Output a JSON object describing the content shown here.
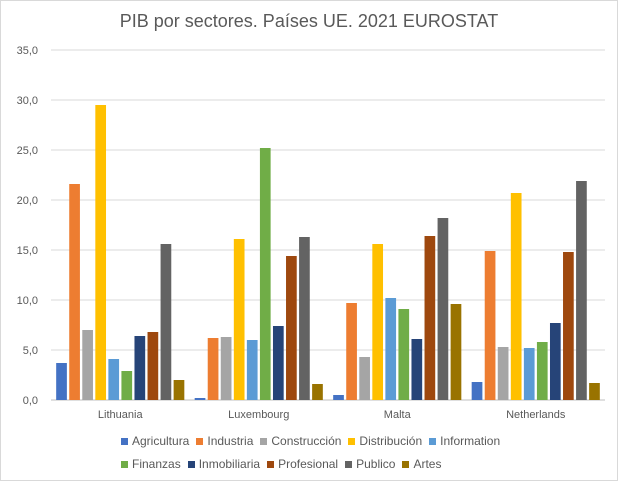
{
  "chart_data": {
    "type": "bar",
    "title": "PIB por sectores. Países UE. 2021 EUROSTAT",
    "xlabel": "",
    "ylabel": "",
    "ylim": [
      0,
      35
    ],
    "yticks": [
      "0,0",
      "5,0",
      "10,0",
      "15,0",
      "20,0",
      "25,0",
      "30,0",
      "35,0"
    ],
    "ytick_values": [
      0,
      5,
      10,
      15,
      20,
      25,
      30,
      35
    ],
    "grid": true,
    "legend_position": "bottom",
    "categories": [
      "Lithuania",
      "Luxembourg",
      "Malta",
      "Netherlands"
    ],
    "series": [
      {
        "name": "Agricultura",
        "color": "#4472c4",
        "values": [
          3.7,
          0.2,
          0.5,
          1.8
        ]
      },
      {
        "name": "Industria",
        "color": "#ed7d31",
        "values": [
          21.6,
          6.2,
          9.7,
          14.9
        ]
      },
      {
        "name": "Construcción",
        "color": "#a5a5a5",
        "values": [
          7.0,
          6.3,
          4.3,
          5.3
        ]
      },
      {
        "name": "Distribución",
        "color": "#ffc000",
        "values": [
          29.5,
          16.1,
          15.6,
          20.7
        ]
      },
      {
        "name": "Information",
        "color": "#5b9bd5",
        "values": [
          4.1,
          6.0,
          10.2,
          5.2
        ]
      },
      {
        "name": "Finanzas",
        "color": "#70ad47",
        "values": [
          2.9,
          25.2,
          9.1,
          5.8
        ]
      },
      {
        "name": "Inmobiliaria",
        "color": "#264478",
        "values": [
          6.4,
          7.4,
          6.1,
          7.7
        ]
      },
      {
        "name": "Profesional",
        "color": "#9e480e",
        "values": [
          6.8,
          14.4,
          16.4,
          14.8
        ]
      },
      {
        "name": "Publico",
        "color": "#636363",
        "values": [
          15.6,
          16.3,
          18.2,
          21.9
        ]
      },
      {
        "name": "Artes",
        "color": "#997300",
        "values": [
          2.0,
          1.6,
          9.6,
          1.7
        ]
      }
    ]
  }
}
